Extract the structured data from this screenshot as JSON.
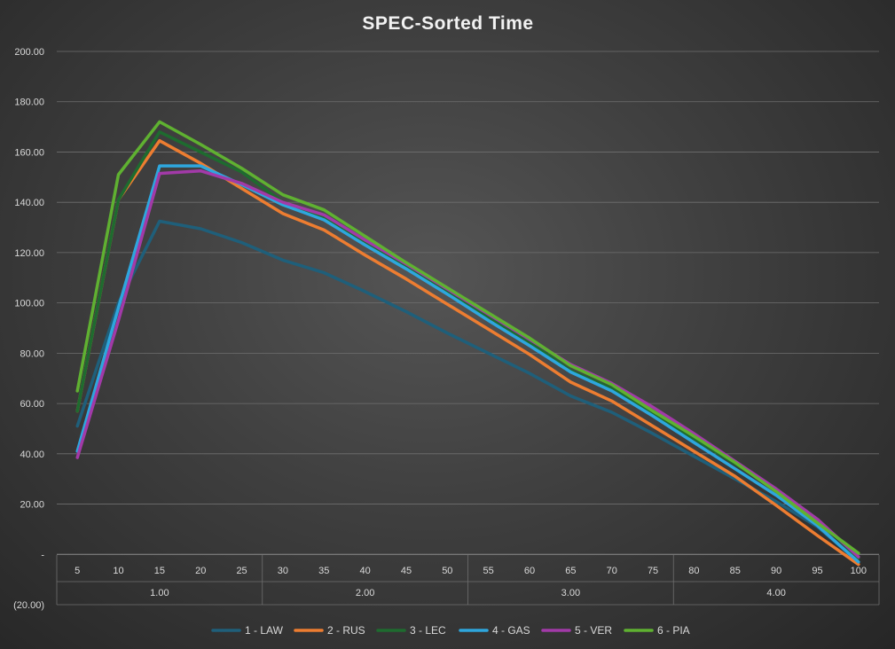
{
  "chart_data": {
    "type": "line",
    "title": "SPEC-Sorted Time",
    "xlabel": "",
    "ylabel": "",
    "ylim": [
      -20,
      200
    ],
    "yticks": [
      -20,
      0,
      20,
      40,
      60,
      80,
      100,
      120,
      140,
      160,
      180,
      200
    ],
    "ytick_labels": [
      "(20.00)",
      "-",
      "20.00",
      "40.00",
      "60.00",
      "80.00",
      "100.00",
      "120.00",
      "140.00",
      "160.00",
      "180.00",
      "200.00"
    ],
    "categories": [
      "5",
      "10",
      "15",
      "20",
      "25",
      "30",
      "35",
      "40",
      "45",
      "50",
      "55",
      "60",
      "65",
      "70",
      "75",
      "80",
      "85",
      "90",
      "95",
      "100"
    ],
    "groups": [
      {
        "label": "1.00",
        "count": 5
      },
      {
        "label": "2.00",
        "count": 5
      },
      {
        "label": "3.00",
        "count": 5
      },
      {
        "label": "4.00",
        "count": 5
      }
    ],
    "grid": true,
    "legend_position": "bottom",
    "series": [
      {
        "name": "1 - LAW",
        "color": "#1f5f7a",
        "values": [
          51,
          100,
          132.5,
          129.5,
          124,
          117,
          112,
          104.5,
          96.5,
          88,
          80,
          72,
          63,
          56.5,
          48,
          39,
          30,
          21,
          11,
          -3
        ]
      },
      {
        "name": "2 - RUS",
        "color": "#ed7d31",
        "values": [
          57,
          141,
          164.5,
          155.5,
          145.5,
          135.5,
          129,
          119,
          109.5,
          99.5,
          89.5,
          79.5,
          68.5,
          61,
          51,
          41,
          31,
          19.5,
          7.5,
          -4
        ]
      },
      {
        "name": "3 - LEC",
        "color": "#1e6b2f",
        "values": [
          57,
          141,
          168,
          160,
          152,
          140,
          134,
          124.5,
          114.5,
          104.5,
          94.5,
          84.5,
          73,
          66,
          56,
          46,
          36,
          26,
          14,
          -1.5
        ]
      },
      {
        "name": "4 - GAS",
        "color": "#2ea6dd",
        "values": [
          41,
          98,
          154.5,
          154.5,
          147,
          139,
          133,
          123,
          113.5,
          103.5,
          93,
          83,
          72.5,
          65,
          55,
          44.5,
          34,
          23.5,
          11.5,
          -3
        ]
      },
      {
        "name": "5 - VER",
        "color": "#a23aa8",
        "values": [
          38.5,
          93,
          151.5,
          152.5,
          147.5,
          140,
          135,
          125,
          115.5,
          105.5,
          95.5,
          85.5,
          75.5,
          68,
          58.5,
          48,
          37,
          26,
          14,
          -1
        ]
      },
      {
        "name": "6 - PIA",
        "color": "#5fb131",
        "values": [
          65,
          151,
          172,
          163,
          153.5,
          143,
          137,
          126.5,
          116,
          106,
          96,
          86,
          75,
          67.5,
          57,
          47,
          36.5,
          25,
          12.5,
          0.5
        ]
      }
    ]
  }
}
